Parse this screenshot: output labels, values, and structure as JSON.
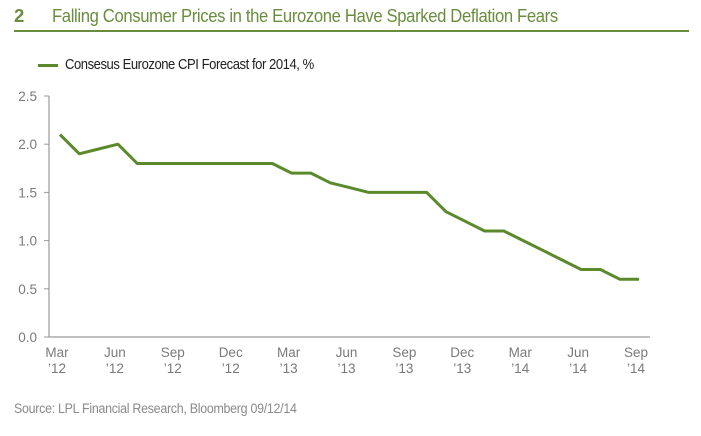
{
  "figure": {
    "number": "2",
    "title": "Falling Consumer Prices in the Eurozone Have Sparked Deflation Fears",
    "source": "Source: LPL Financial Research, Bloomberg   09/12/14"
  },
  "colors": {
    "title": "#6a8d3d",
    "series": "#5b8a2c",
    "axis": "#9a9a9a",
    "tick_text": "#7a7a7a"
  },
  "chart_data": {
    "type": "line",
    "title": "Falling Consumer Prices in the Eurozone Have Sparked Deflation Fears",
    "xlabel": "",
    "ylabel": "",
    "ylim": [
      0,
      2.5
    ],
    "yticks": [
      0.0,
      0.5,
      1.0,
      1.5,
      2.0,
      2.5
    ],
    "ytick_labels": [
      "0.0",
      "0.5",
      "1.0",
      "1.5",
      "2.0",
      "2.5"
    ],
    "xticks": [
      {
        "month_index": 0,
        "label": [
          "Mar",
          "’12"
        ]
      },
      {
        "month_index": 3,
        "label": [
          "Jun",
          "’12"
        ]
      },
      {
        "month_index": 6,
        "label": [
          "Sep",
          "’12"
        ]
      },
      {
        "month_index": 9,
        "label": [
          "Dec",
          "’12"
        ]
      },
      {
        "month_index": 12,
        "label": [
          "Mar",
          "’13"
        ]
      },
      {
        "month_index": 15,
        "label": [
          "Jun",
          "’13"
        ]
      },
      {
        "month_index": 18,
        "label": [
          "Sep",
          "’13"
        ]
      },
      {
        "month_index": 21,
        "label": [
          "Dec",
          "’13"
        ]
      },
      {
        "month_index": 24,
        "label": [
          "Mar",
          "’14"
        ]
      },
      {
        "month_index": 27,
        "label": [
          "Jun",
          "’14"
        ]
      },
      {
        "month_index": 30,
        "label": [
          "Sep",
          "’14"
        ]
      }
    ],
    "grid": false,
    "legend": {
      "position": "top-left",
      "entries": [
        "Consesus Eurozone CPI Forecast for 2014, %"
      ]
    },
    "series": [
      {
        "name": "Consesus Eurozone CPI Forecast for 2014, %",
        "x": [
          "Mar 12",
          "Apr 12",
          "May 12",
          "Jun 12",
          "Jul 12",
          "Aug 12",
          "Sep 12",
          "Oct 12",
          "Nov 12",
          "Dec 12",
          "Jan 13",
          "Feb 13",
          "Mar 13",
          "Apr 13",
          "May 13",
          "Jun 13",
          "Jul 13",
          "Aug 13",
          "Sep 13",
          "Oct 13",
          "Nov 13",
          "Dec 13",
          "Jan 14",
          "Feb 14",
          "Mar 14",
          "Apr 14",
          "May 14",
          "Jun 14",
          "Jul 14",
          "Aug 14",
          "Sep 14"
        ],
        "values": [
          2.1,
          1.9,
          1.95,
          2.0,
          1.8,
          1.8,
          1.8,
          1.8,
          1.8,
          1.8,
          1.8,
          1.8,
          1.7,
          1.7,
          1.6,
          1.55,
          1.5,
          1.5,
          1.5,
          1.5,
          1.3,
          1.2,
          1.1,
          1.1,
          1.0,
          0.9,
          0.8,
          0.7,
          0.7,
          0.6,
          0.6
        ]
      }
    ]
  }
}
